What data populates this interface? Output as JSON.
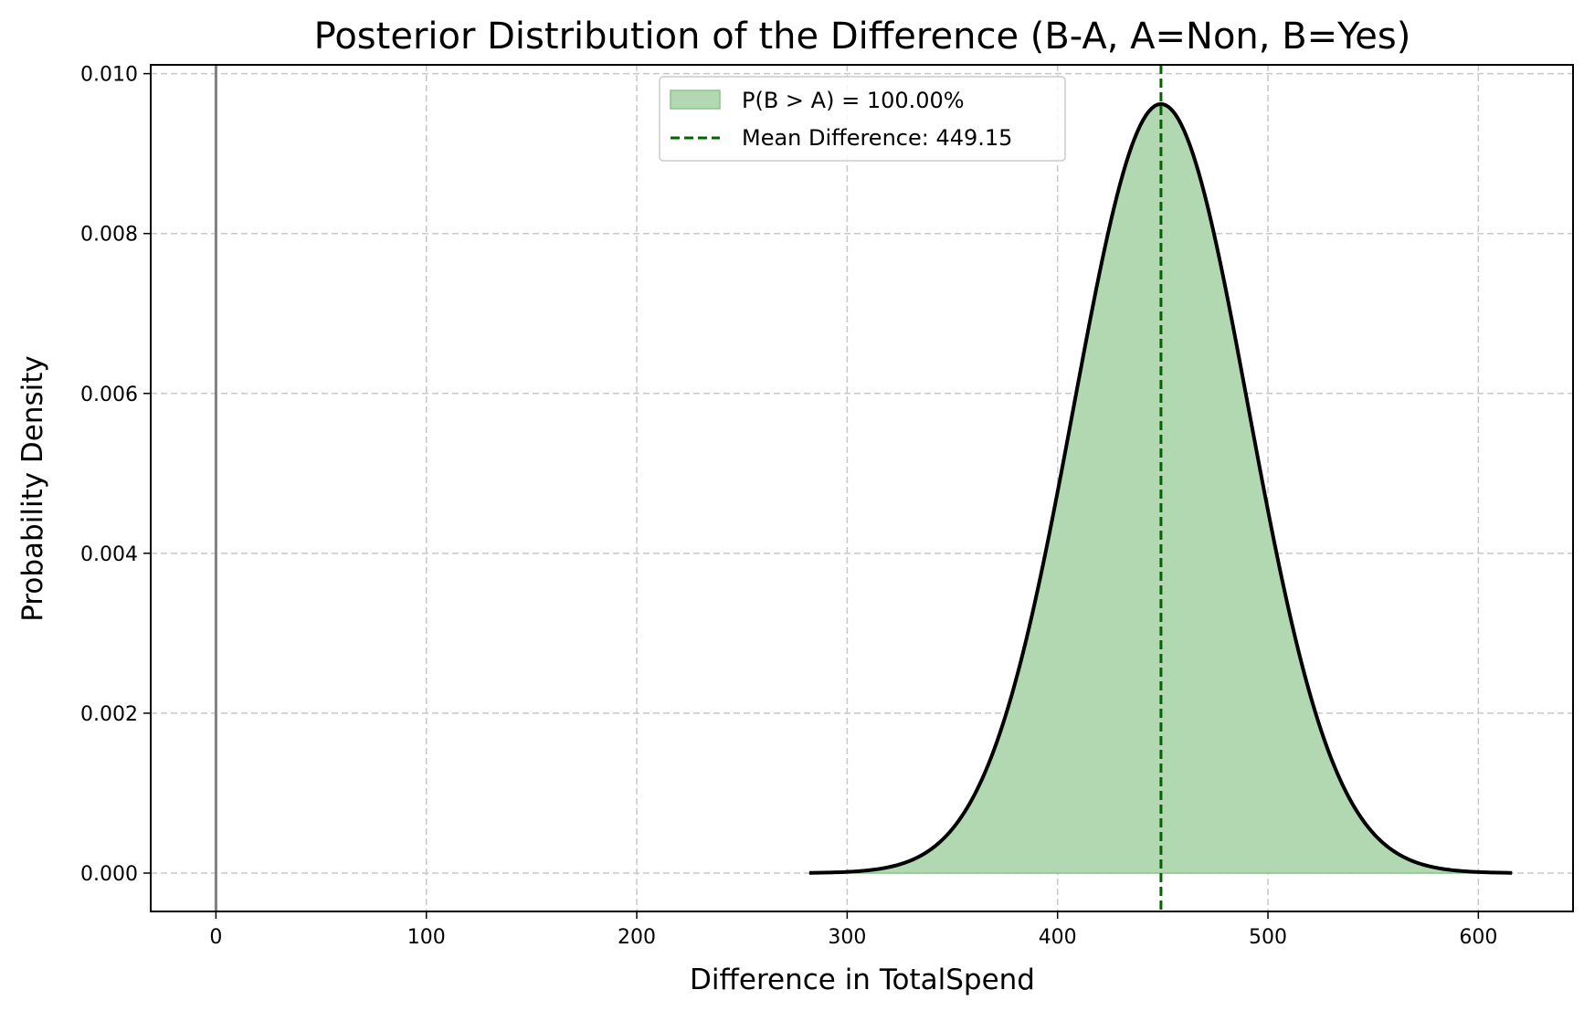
{
  "chart_data": {
    "type": "area",
    "title": "Posterior Distribution of the Difference (B-A, A=Non, B=Yes)",
    "xlabel": "Difference in TotalSpend",
    "ylabel": "Probability Density",
    "xlim": [
      -31,
      645
    ],
    "ylim": [
      -0.00048,
      0.01011
    ],
    "xticks": [
      0,
      100,
      200,
      300,
      400,
      500,
      600
    ],
    "xtick_labels": [
      "0",
      "100",
      "200",
      "300",
      "400",
      "500",
      "600"
    ],
    "yticks": [
      0.0,
      0.002,
      0.004,
      0.006,
      0.008,
      0.01
    ],
    "ytick_labels": [
      "0.000",
      "0.002",
      "0.004",
      "0.006",
      "0.008",
      "0.010"
    ],
    "grid": true,
    "legend_position": "upper-center",
    "series": [
      {
        "name": "P(B > A) = 100.00%",
        "kind": "density-curve-filled",
        "line_color": "#000000",
        "fill_color": "#b2d8b2",
        "x": [
          282,
          300,
          320,
          340,
          360,
          380,
          400,
          420,
          440,
          449,
          460,
          480,
          500,
          520,
          540,
          560,
          580,
          600,
          616
        ],
        "y": [
          0.0,
          3e-05,
          0.00013,
          0.00043,
          0.00121,
          0.00277,
          0.00504,
          0.0076,
          0.00938,
          0.00962,
          0.00944,
          0.00788,
          0.00539,
          0.00304,
          0.0014,
          0.00053,
          0.00016,
          4e-05,
          1e-05
        ]
      },
      {
        "name": "Mean Difference: 449.15",
        "kind": "vertical-line",
        "x_value": 449.15,
        "line_color": "#006400",
        "dashed": true
      },
      {
        "name": "",
        "kind": "vertical-line",
        "x_value": 0,
        "line_color": "#808080",
        "dashed": false
      }
    ]
  }
}
